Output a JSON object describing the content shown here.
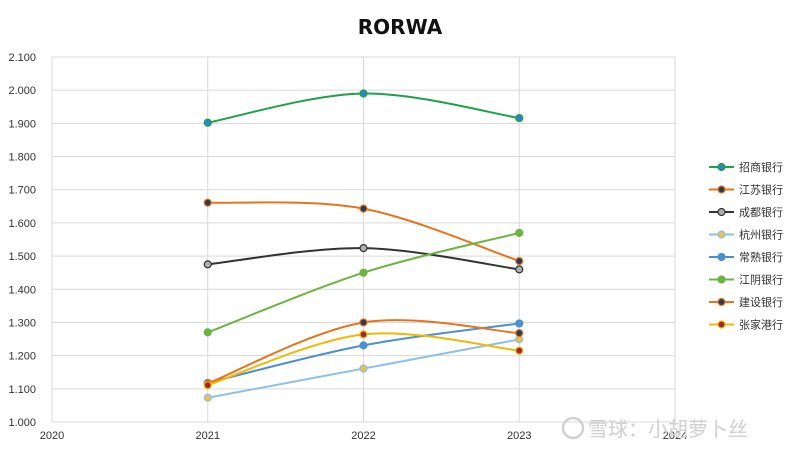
{
  "chart_data": {
    "type": "line",
    "title": "RORWA",
    "xlabel": "",
    "ylabel": "",
    "x_ticks": [
      "2020",
      "2021",
      "2022",
      "2023",
      "2024"
    ],
    "xlim": [
      2020,
      2024
    ],
    "ylim": [
      1.0,
      2.1
    ],
    "y_ticks": [
      "1.000",
      "1.100",
      "1.200",
      "1.300",
      "1.400",
      "1.500",
      "1.600",
      "1.700",
      "1.800",
      "1.900",
      "2.000",
      "2.100"
    ],
    "grid": true,
    "smooth": true,
    "legend_position": "right",
    "x": [
      2021,
      2022,
      2023
    ],
    "series": [
      {
        "name": "招商银行",
        "values": [
          1.902,
          1.99,
          1.916
        ],
        "color": "#1aa34a",
        "marker_fill": "#2e86c1"
      },
      {
        "name": "江苏银行",
        "values": [
          1.661,
          1.643,
          1.485
        ],
        "color": "#e8731c",
        "marker_fill": "#2b3a55"
      },
      {
        "name": "成都银行",
        "values": [
          1.475,
          1.524,
          1.46
        ],
        "color": "#333333",
        "marker_fill": "#b0b0b0"
      },
      {
        "name": "杭州银行",
        "values": [
          1.073,
          1.161,
          1.249
        ],
        "color": "#8fbfe8",
        "marker_fill": "#e8c14a"
      },
      {
        "name": "常熟银行",
        "values": [
          1.118,
          1.231,
          1.297
        ],
        "color": "#4a8fd4",
        "marker_fill": "#4a8fd4"
      },
      {
        "name": "江阴银行",
        "values": [
          1.27,
          1.45,
          1.57
        ],
        "color": "#6db33f",
        "marker_fill": "#6db33f"
      },
      {
        "name": "建设银行",
        "values": [
          1.116,
          1.3,
          1.268
        ],
        "color": "#e8731c",
        "marker_fill": "#2b3a55"
      },
      {
        "name": "张家港行",
        "values": [
          1.111,
          1.264,
          1.215
        ],
        "color": "#f2b705",
        "marker_fill": "#a0282a"
      }
    ]
  },
  "watermark": "雪球：小胡萝卜丝"
}
